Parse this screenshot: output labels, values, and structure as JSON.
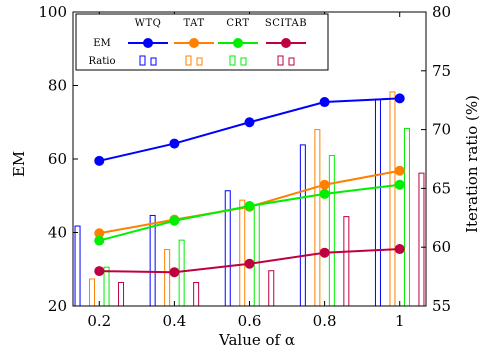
{
  "chart_data": {
    "type": "bar+line",
    "x": [
      0.2,
      0.4,
      0.6,
      0.8,
      1
    ],
    "x_tick_labels": [
      "0.2",
      "0.4",
      "0.6",
      "0.8",
      "1"
    ],
    "xlabel": "Value of α",
    "ylabel_left": "EM",
    "ylabel_right": "Iteration ratio (%)",
    "ylim_left": [
      20,
      100
    ],
    "ylim_right": [
      55,
      80
    ],
    "y_ticks_left": [
      20,
      40,
      60,
      80,
      100
    ],
    "y_ticks_right": [
      55,
      60,
      65,
      70,
      75,
      80
    ],
    "legend": {
      "position": "top-left",
      "columns": [
        "WTQ",
        "TAT",
        "CRT",
        "SCITAB"
      ],
      "rows": [
        "EM",
        "Ratio"
      ]
    },
    "series": [
      {
        "name": "WTQ",
        "color": "#0000ff",
        "em": [
          59.5,
          64.2,
          70.0,
          75.5,
          76.5
        ],
        "ratio": [
          61.8,
          62.7,
          64.8,
          68.7,
          72.6
        ]
      },
      {
        "name": "TAT",
        "color": "#ff8000",
        "em": [
          39.8,
          43.5,
          47.0,
          53.0,
          56.8
        ],
        "ratio": [
          57.3,
          59.8,
          64.0,
          70.0,
          73.2
        ]
      },
      {
        "name": "CRT",
        "color": "#00ee00",
        "em": [
          37.8,
          43.2,
          47.2,
          50.5,
          53.0
        ],
        "ratio": [
          58.3,
          60.6,
          63.6,
          67.8,
          70.1
        ]
      },
      {
        "name": "SCITAB",
        "color": "#bf0040",
        "em": [
          29.5,
          29.2,
          31.5,
          34.5,
          35.5
        ],
        "ratio": [
          57.0,
          57.0,
          58.0,
          62.6,
          66.3
        ]
      }
    ]
  }
}
